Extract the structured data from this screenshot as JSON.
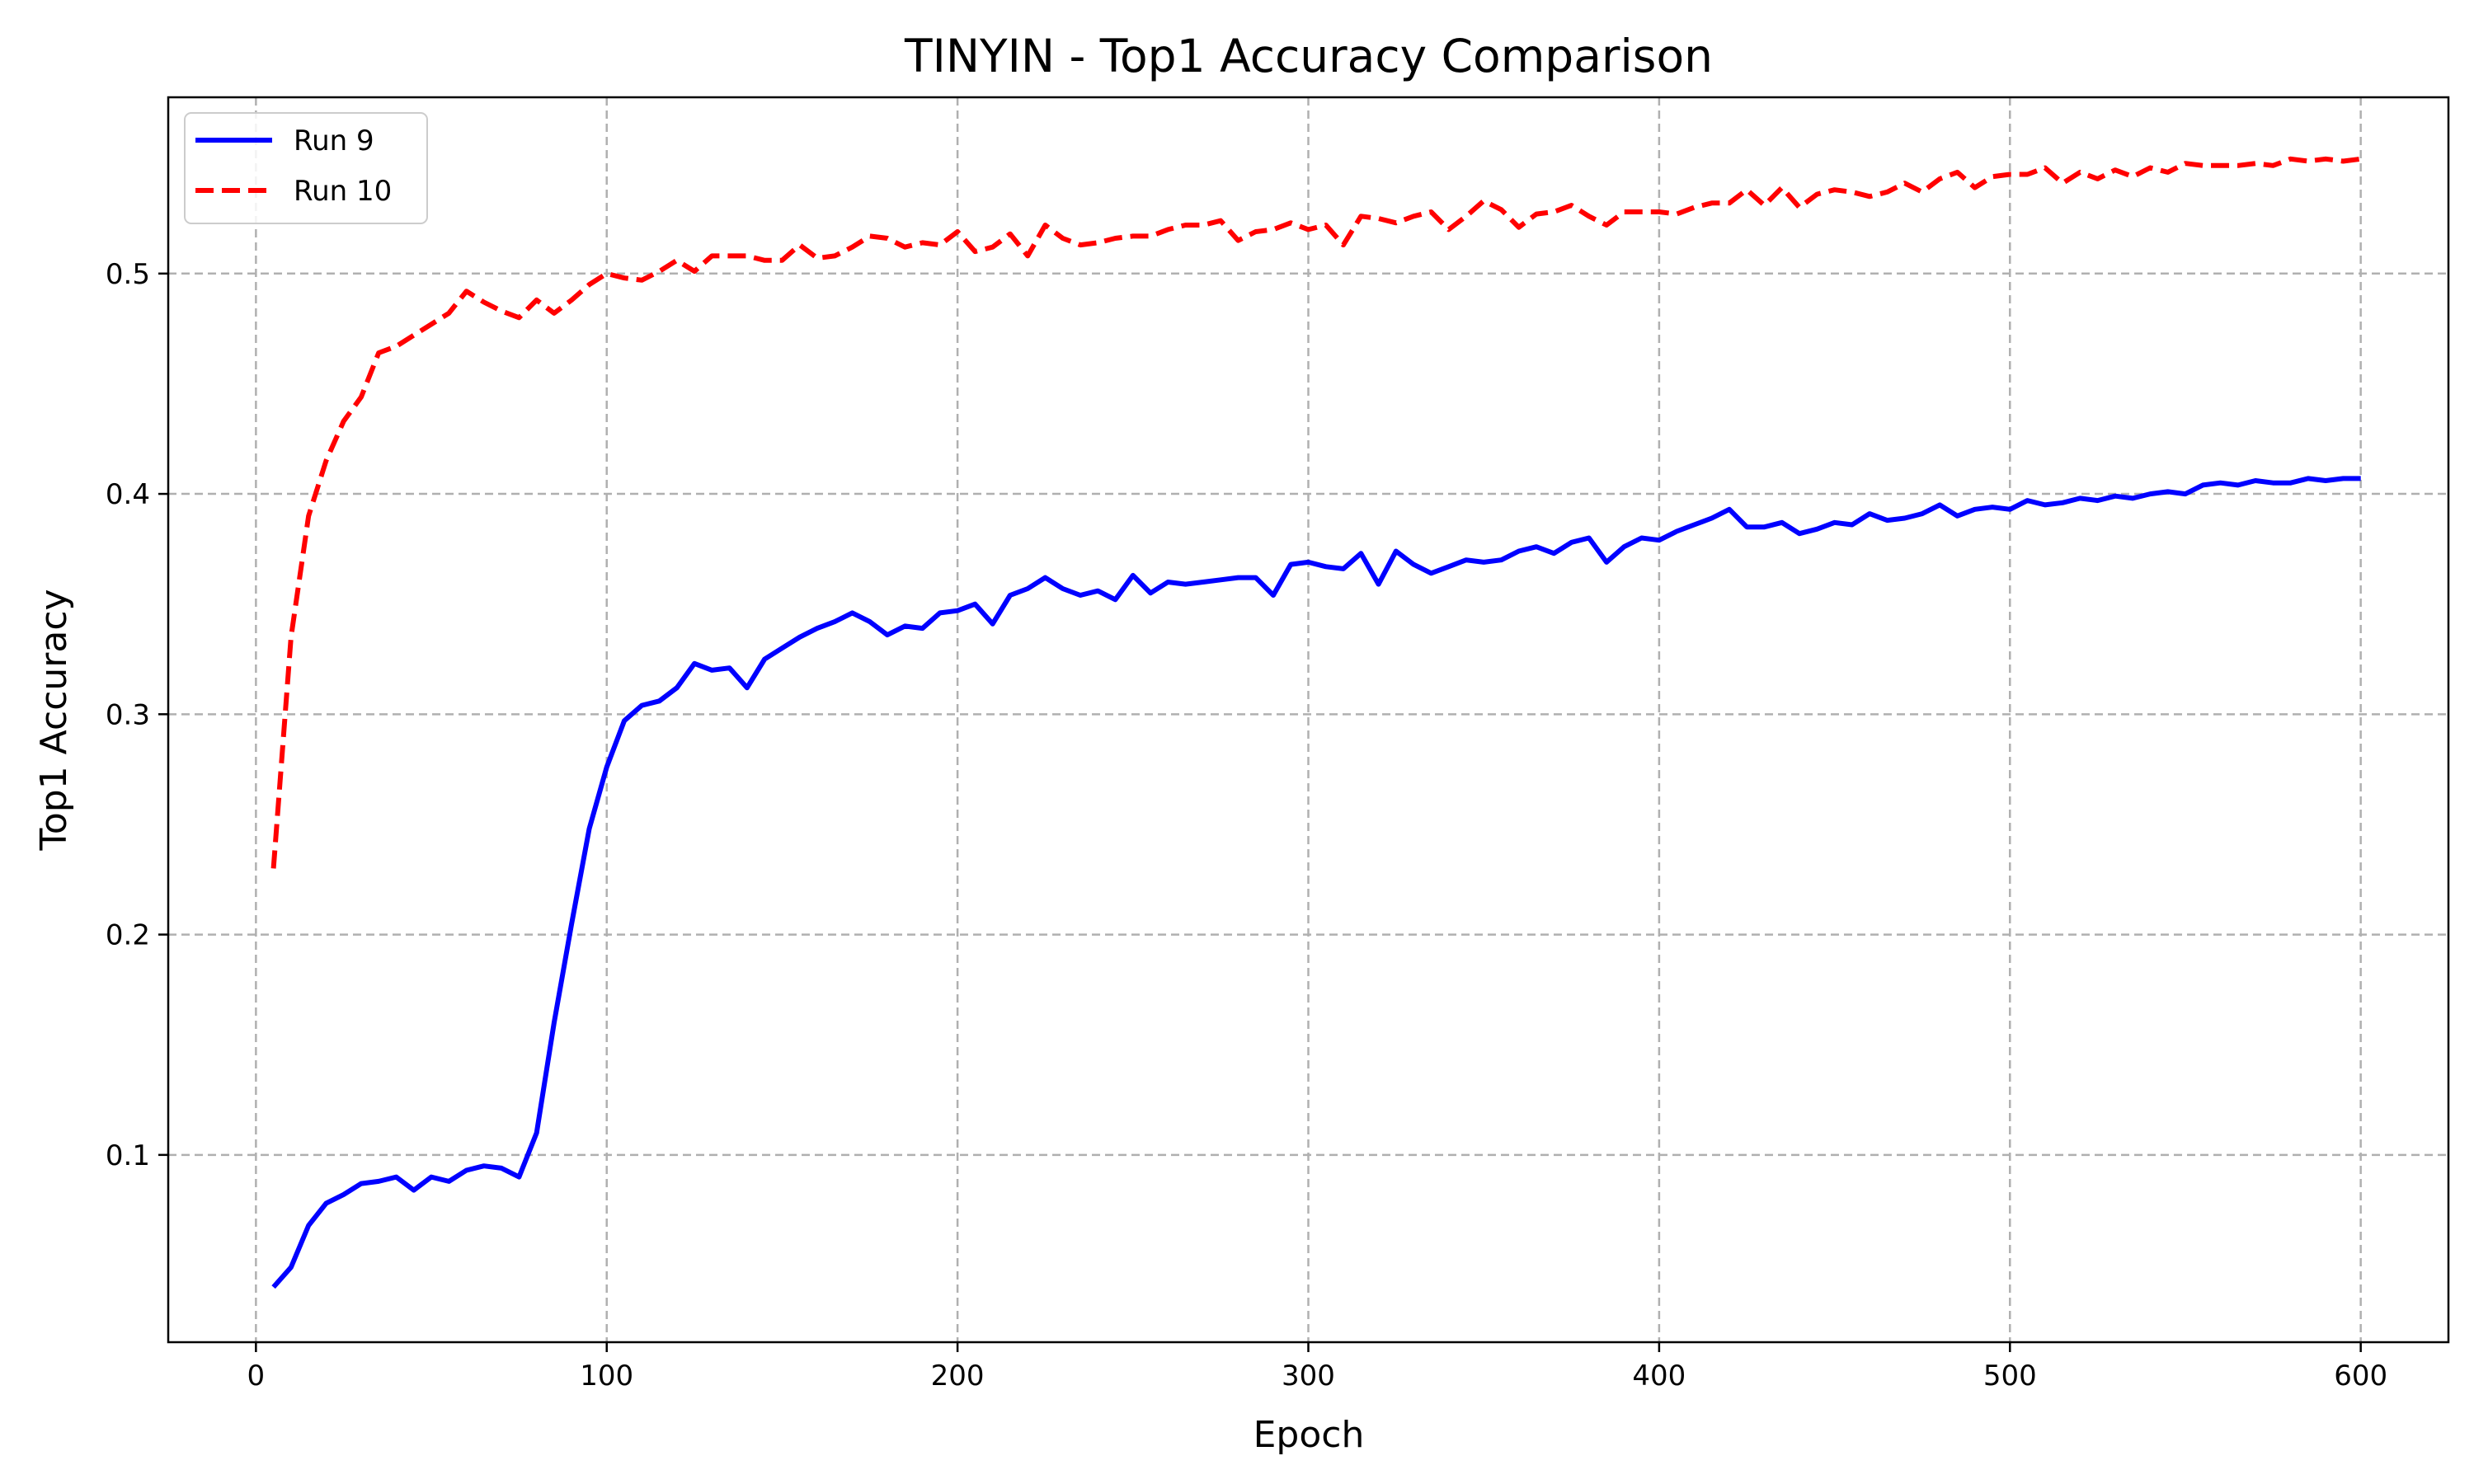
{
  "chart_data": {
    "type": "line",
    "title": "TINYIN - Top1 Accuracy Comparison",
    "xlabel": "Epoch",
    "ylabel": "Top1 Accuracy",
    "xlim": [
      -25,
      625
    ],
    "ylim": [
      0.015,
      0.58
    ],
    "xticks": [
      0,
      100,
      200,
      300,
      400,
      500,
      600
    ],
    "yticks": [
      0.1,
      0.2,
      0.3,
      0.4,
      0.5
    ],
    "xtick_labels": [
      "0",
      "100",
      "200",
      "300",
      "400",
      "500",
      "600"
    ],
    "ytick_labels": [
      "0.1",
      "0.2",
      "0.3",
      "0.4",
      "0.5"
    ],
    "grid": true,
    "legend_position": "top-left",
    "x": [
      5,
      10,
      15,
      20,
      25,
      30,
      35,
      40,
      45,
      50,
      55,
      60,
      65,
      70,
      75,
      80,
      85,
      90,
      95,
      100,
      105,
      110,
      115,
      120,
      125,
      130,
      135,
      140,
      145,
      150,
      155,
      160,
      165,
      170,
      175,
      180,
      185,
      190,
      195,
      200,
      205,
      210,
      215,
      220,
      225,
      230,
      235,
      240,
      245,
      250,
      255,
      260,
      265,
      270,
      275,
      280,
      285,
      290,
      295,
      300,
      305,
      310,
      315,
      320,
      325,
      330,
      335,
      340,
      345,
      350,
      355,
      360,
      365,
      370,
      375,
      380,
      385,
      390,
      395,
      400,
      405,
      410,
      415,
      420,
      425,
      430,
      435,
      440,
      445,
      450,
      455,
      460,
      465,
      470,
      475,
      480,
      485,
      490,
      495,
      500,
      505,
      510,
      515,
      520,
      525,
      530,
      535,
      540,
      545,
      550,
      555,
      560,
      565,
      570,
      575,
      580,
      585,
      590,
      595,
      600
    ],
    "series": [
      {
        "name": "Run 9",
        "color": "#0000ff",
        "style": "solid",
        "values": [
          0.04,
          0.049,
          0.068,
          0.078,
          0.082,
          0.087,
          0.088,
          0.09,
          0.084,
          0.09,
          0.088,
          0.093,
          0.095,
          0.094,
          0.09,
          0.11,
          0.16,
          0.205,
          0.248,
          0.276,
          0.297,
          0.304,
          0.306,
          0.312,
          0.323,
          0.32,
          0.321,
          0.312,
          0.325,
          0.33,
          0.335,
          0.339,
          0.342,
          0.346,
          0.342,
          0.336,
          0.34,
          0.339,
          0.346,
          0.347,
          0.35,
          0.341,
          0.354,
          0.357,
          0.362,
          0.357,
          0.354,
          0.356,
          0.352,
          0.363,
          0.355,
          0.36,
          0.359,
          0.36,
          0.361,
          0.362,
          0.362,
          0.354,
          0.368,
          0.369,
          0.367,
          0.366,
          0.373,
          0.359,
          0.374,
          0.368,
          0.364,
          0.367,
          0.37,
          0.369,
          0.37,
          0.374,
          0.376,
          0.373,
          0.378,
          0.38,
          0.369,
          0.376,
          0.38,
          0.379,
          0.383,
          0.386,
          0.389,
          0.393,
          0.385,
          0.385,
          0.387,
          0.382,
          0.384,
          0.387,
          0.386,
          0.391,
          0.388,
          0.389,
          0.391,
          0.395,
          0.39,
          0.393,
          0.394,
          0.393,
          0.397,
          0.395,
          0.396,
          0.398,
          0.397,
          0.399,
          0.398,
          0.4,
          0.401,
          0.4,
          0.404,
          0.405,
          0.404,
          0.406,
          0.405,
          0.405,
          0.407,
          0.406,
          0.407,
          0.407
        ]
      },
      {
        "name": "Run 10",
        "color": "#ff0000",
        "style": "dashed",
        "values": [
          0.23,
          0.335,
          0.39,
          0.415,
          0.433,
          0.444,
          0.464,
          0.467,
          0.472,
          0.477,
          0.482,
          0.492,
          0.487,
          0.483,
          0.48,
          0.488,
          0.482,
          0.488,
          0.495,
          0.5,
          0.498,
          0.497,
          0.501,
          0.506,
          0.501,
          0.508,
          0.508,
          0.508,
          0.506,
          0.506,
          0.513,
          0.507,
          0.508,
          0.512,
          0.517,
          0.516,
          0.512,
          0.514,
          0.513,
          0.519,
          0.51,
          0.512,
          0.518,
          0.508,
          0.522,
          0.516,
          0.513,
          0.514,
          0.516,
          0.517,
          0.517,
          0.52,
          0.522,
          0.522,
          0.524,
          0.515,
          0.519,
          0.52,
          0.523,
          0.52,
          0.522,
          0.513,
          0.526,
          0.525,
          0.523,
          0.526,
          0.528,
          0.52,
          0.526,
          0.533,
          0.529,
          0.521,
          0.527,
          0.528,
          0.531,
          0.526,
          0.522,
          0.528,
          0.528,
          0.528,
          0.527,
          0.53,
          0.532,
          0.532,
          0.538,
          0.531,
          0.539,
          0.53,
          0.536,
          0.538,
          0.537,
          0.535,
          0.537,
          0.541,
          0.537,
          0.543,
          0.546,
          0.539,
          0.544,
          0.545,
          0.545,
          0.548,
          0.541,
          0.546,
          0.543,
          0.547,
          0.544,
          0.548,
          0.546,
          0.55,
          0.549,
          0.549,
          0.549,
          0.55,
          0.549,
          0.552,
          0.551,
          0.552,
          0.551,
          0.552
        ]
      }
    ]
  }
}
